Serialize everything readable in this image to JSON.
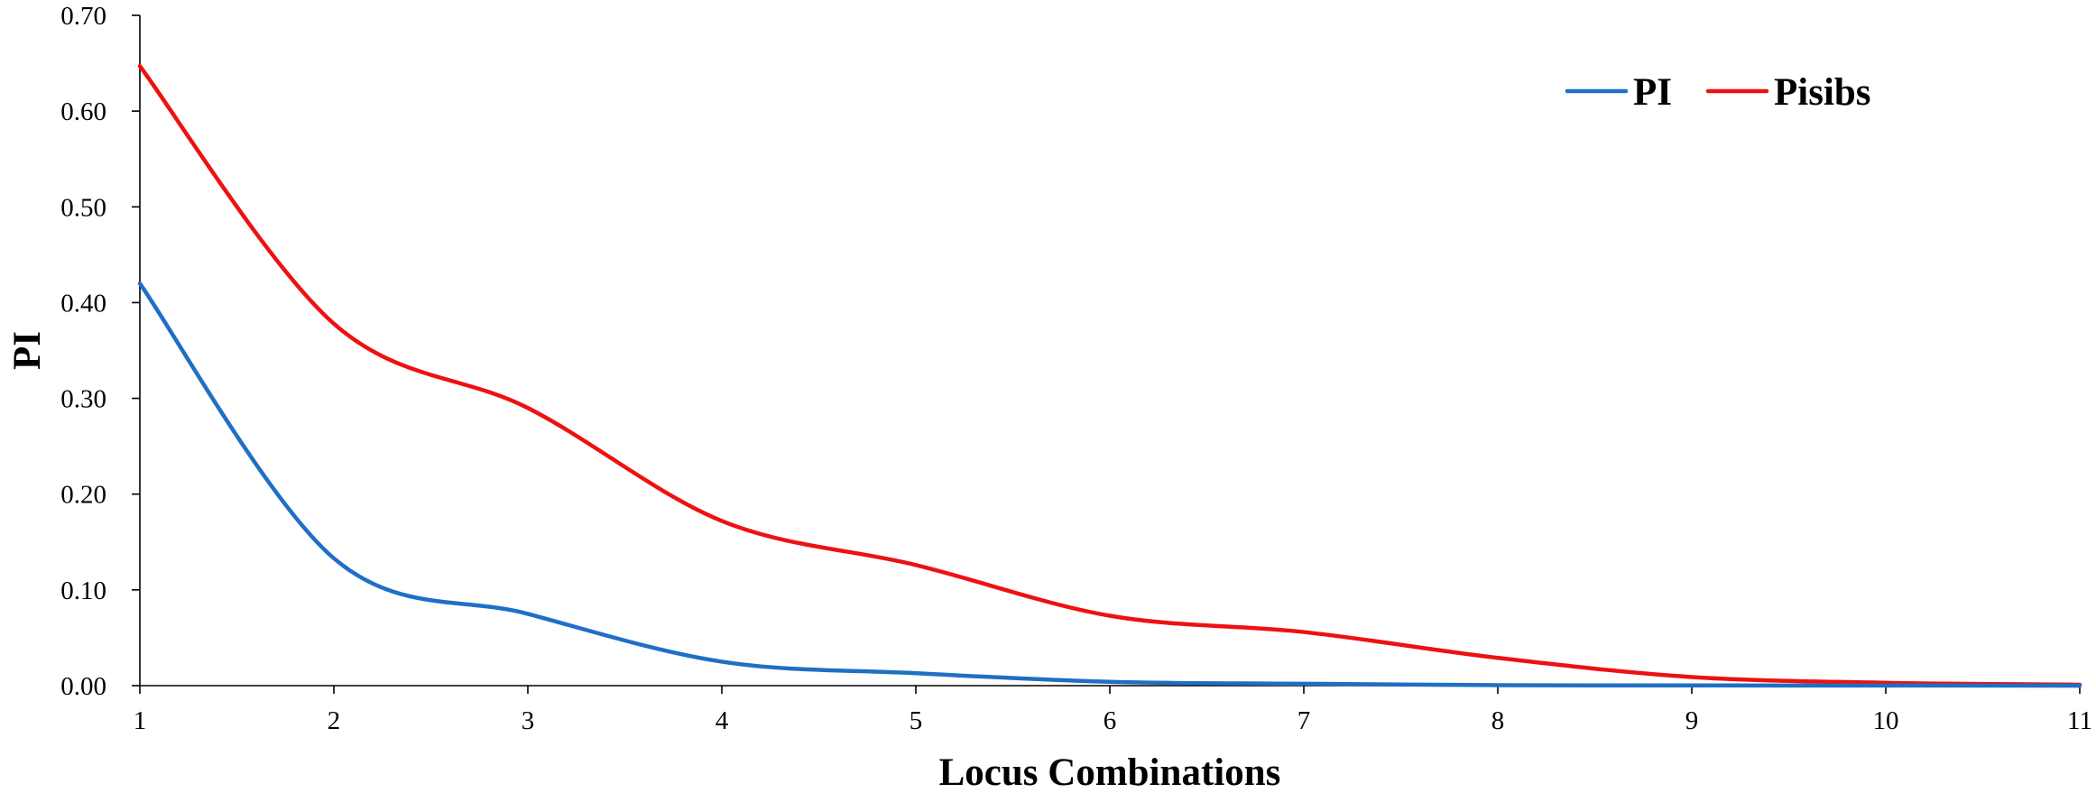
{
  "chart_data": {
    "type": "line",
    "title": "",
    "xlabel": "Locus Combinations",
    "ylabel": "PI",
    "x": [
      1,
      2,
      3,
      4,
      5,
      6,
      7,
      8,
      9,
      10,
      11
    ],
    "xlim": [
      1,
      11
    ],
    "ylim": [
      0,
      0.7
    ],
    "x_ticks": [
      "1",
      "2",
      "3",
      "4",
      "5",
      "6",
      "7",
      "8",
      "9",
      "10",
      "11"
    ],
    "y_ticks": [
      "0.00",
      "0.10",
      "0.20",
      "0.30",
      "0.40",
      "0.50",
      "0.60",
      "0.70"
    ],
    "grid": false,
    "legend_position": "top-right",
    "smooth": true,
    "series": [
      {
        "name": "PI",
        "color": "#1f6fc5",
        "values": [
          0.42,
          0.133,
          0.075,
          0.025,
          0.013,
          0.004,
          0.002,
          0.0005,
          0.0002,
          0.0001,
          0.0
        ]
      },
      {
        "name": "Pisibs",
        "color": "#ee1111",
        "values": [
          0.647,
          0.378,
          0.29,
          0.172,
          0.126,
          0.073,
          0.056,
          0.029,
          0.009,
          0.003,
          0.001
        ]
      }
    ]
  }
}
